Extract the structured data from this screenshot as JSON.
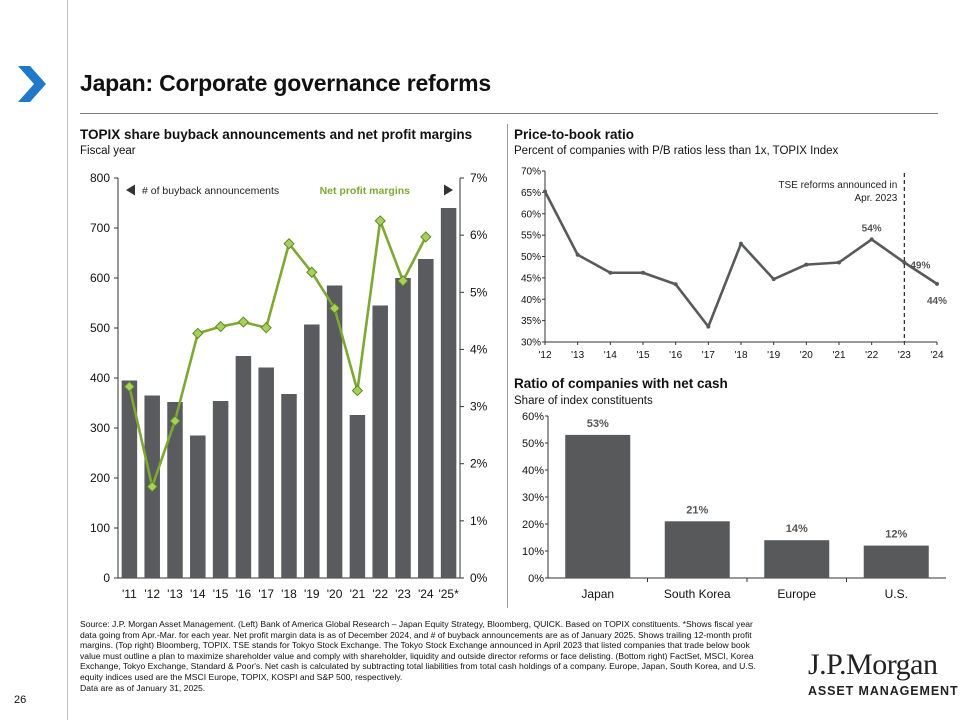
{
  "page": {
    "title": "Japan: Corporate governance reforms",
    "page_number": "26",
    "source_text": "Source: J.P. Morgan Asset Management. (Left) Bank of America Global Research – Japan Equity Strategy, Bloomberg, QUICK. Based on TOPIX constituents. *Shows fiscal year data going from Apr.-Mar. for each year. Net profit margin data is as of December 2024, and # of buyback announcements are as of January 2025. Shows trailing 12-month profit margins. (Top right) Bloomberg, TOPIX. TSE stands for Tokyo Stock Exchange. The Tokyo Stock Exchange announced in April 2023 that listed companies that trade below book value must outline a plan to maximize shareholder value and comply with shareholder, liquidity and outside director reforms or face delisting. (Bottom right) FactSet, MSCI, Korea Exchange, Tokyo Exchange, Standard & Poor's. Net cash is calculated by subtracting total liabilities from total cash holdings of a company. Europe, Japan, South Korea, and U.S. equity indices used are the MSCI Europe, TOPIX, KOSPI and S&P 500, respectively.",
    "data_note": "Data are as of January 31, 2025.",
    "logo_name": "J.P.Morgan",
    "logo_sub": "ASSET MANAGEMENT",
    "accent_color": "#1f78c8"
  },
  "chart_data": [
    {
      "type": "bar",
      "title": "TOPIX share buyback announcements and net profit margins",
      "subtitle": "Fiscal year",
      "categories": [
        "'11",
        "'12",
        "'13",
        "'14",
        "'15",
        "'16",
        "'17",
        "'18",
        "'19",
        "'20",
        "'21",
        "'22",
        "'23",
        "'24",
        "'25*"
      ],
      "series": [
        {
          "name": "# of buyback announcements",
          "axis": "left",
          "color": "#595b5e",
          "values": [
            395,
            365,
            352,
            285,
            354,
            444,
            421,
            368,
            507,
            585,
            326,
            545,
            600,
            638,
            740
          ]
        },
        {
          "name": "Net profit margins",
          "axis": "right",
          "type": "line",
          "color": "#7ea832",
          "values": [
            3.35,
            1.6,
            2.75,
            4.28,
            4.4,
            4.48,
            4.38,
            5.85,
            5.35,
            4.72,
            3.28,
            6.25,
            5.2,
            5.97,
            null
          ]
        }
      ],
      "ylim": [
        0,
        800
      ],
      "yticks": [
        "0",
        "100",
        "200",
        "300",
        "400",
        "500",
        "600",
        "700",
        "800"
      ],
      "y2lim": [
        0,
        7
      ],
      "y2ticks": [
        "0%",
        "1%",
        "2%",
        "3%",
        "4%",
        "5%",
        "6%",
        "7%"
      ],
      "legend_left": "# of buyback announcements",
      "legend_right": "Net profit margins",
      "grid": false
    },
    {
      "type": "line",
      "title": "Price-to-book ratio",
      "subtitle": "Percent of companies with P/B ratios less than 1x, TOPIX Index",
      "x": [
        "'12",
        "'13",
        "'14",
        "'15",
        "'16",
        "'17",
        "'18",
        "'19",
        "'20",
        "'21",
        "'22",
        "'23",
        "'24"
      ],
      "values": [
        65.2,
        50.4,
        46.2,
        46.2,
        43.5,
        33.6,
        53.0,
        44.7,
        48.1,
        48.6,
        54.0,
        48.6,
        43.6
      ],
      "ylim": [
        30,
        70
      ],
      "yticks": [
        "30%",
        "35%",
        "40%",
        "45%",
        "50%",
        "55%",
        "60%",
        "65%",
        "70%"
      ],
      "labels": [
        {
          "index": 10,
          "text": "54%"
        },
        {
          "index": 11,
          "text": "49%"
        },
        {
          "index": 12,
          "text": "44%"
        }
      ],
      "annotation_line1": "TSE reforms announced in",
      "annotation_line2": "Apr. 2023",
      "color": "#58595b",
      "grid": false
    },
    {
      "type": "bar",
      "title": "Ratio of companies with net cash",
      "subtitle": "Share of index constituents",
      "categories": [
        "Japan",
        "South Korea",
        "Europe",
        "U.S."
      ],
      "values": [
        53,
        21,
        14,
        12
      ],
      "data_labels": [
        "53%",
        "21%",
        "14%",
        "12%"
      ],
      "ylim": [
        0,
        60
      ],
      "yticks": [
        "0%",
        "10%",
        "20%",
        "30%",
        "40%",
        "50%",
        "60%"
      ],
      "color": "#58595b",
      "grid": false
    }
  ]
}
